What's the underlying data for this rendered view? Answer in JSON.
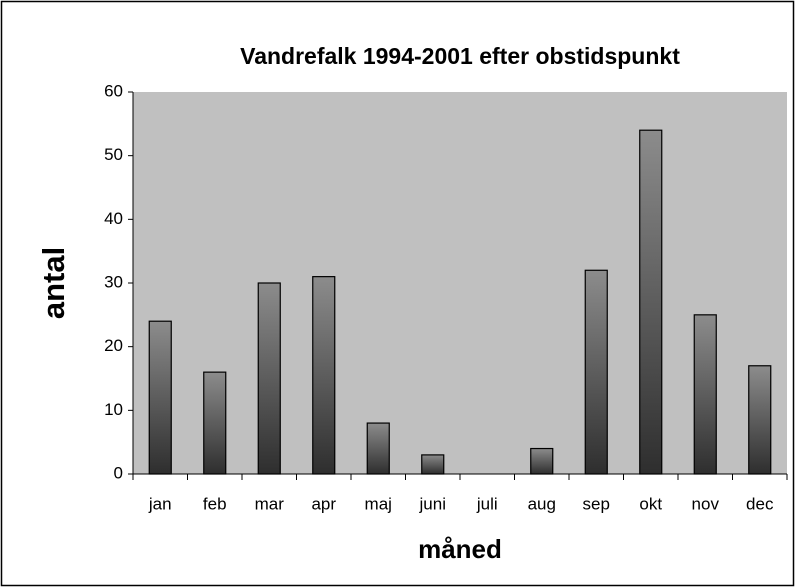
{
  "chart_data": {
    "type": "bar",
    "title": "Vandrefalk 1994-2001 efter obstidspunkt",
    "x_label": "måned",
    "y_label": "antal",
    "categories": [
      "jan",
      "feb",
      "mar",
      "apr",
      "maj",
      "juni",
      "juli",
      "aug",
      "sep",
      "okt",
      "nov",
      "dec"
    ],
    "values": [
      24,
      16,
      30,
      31,
      8,
      3,
      0,
      4,
      32,
      54,
      25,
      17
    ],
    "ylim": [
      0,
      60
    ],
    "yticks": [
      0,
      10,
      20,
      30,
      40,
      50,
      60
    ],
    "grid": false
  }
}
